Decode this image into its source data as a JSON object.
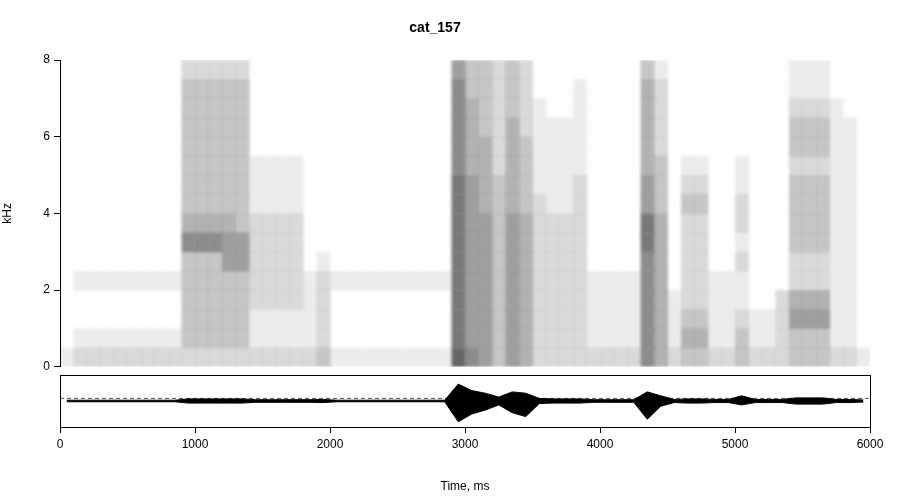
{
  "chart_data": [
    {
      "type": "heatmap",
      "title": "cat_157",
      "y_label": "kHz",
      "xlim": [
        0,
        6000
      ],
      "ylim": [
        0,
        8
      ],
      "yticks": [
        0,
        2,
        4,
        6,
        8
      ],
      "tick_labels": "y",
      "color": "#000000",
      "zlim": [
        0,
        10
      ],
      "x_bins": [
        0,
        100,
        200,
        300,
        400,
        500,
        600,
        700,
        800,
        900,
        1000,
        1100,
        1200,
        1300,
        1400,
        1500,
        1600,
        1700,
        1800,
        1900,
        2000,
        2100,
        2200,
        2300,
        2400,
        2500,
        2600,
        2700,
        2800,
        2900,
        3000,
        3100,
        3200,
        3300,
        3400,
        3500,
        3600,
        3700,
        3800,
        3900,
        4000,
        4100,
        4200,
        4300,
        4400,
        4500,
        4600,
        4700,
        4800,
        4900,
        5000,
        5100,
        5200,
        5300,
        5400,
        5500,
        5600,
        5700,
        5800,
        5900,
        6000
      ],
      "y_bins": [
        0,
        0.5,
        1,
        1.5,
        2,
        2.5,
        3,
        3.5,
        4,
        4.5,
        5,
        5.5,
        6,
        6.5,
        7,
        7.5,
        8
      ],
      "cells": [
        [
          1,
          2,
          2,
          2,
          2,
          2,
          2,
          2,
          2,
          2,
          2,
          2,
          2,
          2,
          2,
          2,
          2,
          2,
          2,
          3,
          1,
          1,
          1,
          1,
          1,
          1,
          1,
          1,
          1,
          8,
          6,
          5,
          3,
          5,
          4,
          2,
          2,
          2,
          2,
          2,
          2,
          2,
          2,
          6,
          4,
          2,
          3,
          3,
          2,
          2,
          3,
          2,
          2,
          2,
          3,
          3,
          3,
          2,
          2,
          1
        ],
        [
          0,
          1,
          1,
          1,
          1,
          1,
          1,
          1,
          1,
          3,
          3,
          3,
          3,
          3,
          1,
          1,
          1,
          1,
          1,
          2,
          0,
          0,
          0,
          0,
          0,
          0,
          0,
          0,
          0,
          7,
          5,
          5,
          3,
          5,
          4,
          2,
          2,
          2,
          2,
          1,
          1,
          1,
          1,
          6,
          4,
          1,
          4,
          4,
          1,
          1,
          3,
          1,
          1,
          2,
          3,
          3,
          3,
          1,
          1,
          0
        ],
        [
          0,
          0,
          0,
          0,
          0,
          0,
          0,
          0,
          0,
          3,
          3,
          3,
          3,
          3,
          1,
          1,
          1,
          1,
          1,
          2,
          0,
          0,
          0,
          0,
          0,
          0,
          0,
          0,
          0,
          7,
          5,
          5,
          3,
          5,
          4,
          2,
          2,
          2,
          2,
          1,
          1,
          1,
          1,
          6,
          4,
          1,
          3,
          3,
          1,
          1,
          2,
          1,
          1,
          2,
          5,
          5,
          5,
          1,
          1,
          0
        ],
        [
          0,
          0,
          0,
          0,
          0,
          0,
          0,
          0,
          0,
          3,
          3,
          3,
          3,
          3,
          2,
          2,
          2,
          2,
          1,
          2,
          0,
          0,
          0,
          0,
          0,
          0,
          0,
          0,
          0,
          7,
          5,
          5,
          3,
          5,
          4,
          2,
          2,
          2,
          2,
          1,
          1,
          1,
          1,
          6,
          4,
          1,
          2,
          2,
          1,
          1,
          1,
          0,
          0,
          2,
          4,
          4,
          4,
          1,
          1,
          0
        ],
        [
          0,
          1,
          1,
          1,
          1,
          1,
          1,
          1,
          1,
          3,
          3,
          3,
          3,
          3,
          2,
          2,
          2,
          2,
          1,
          2,
          1,
          1,
          1,
          1,
          1,
          1,
          1,
          1,
          1,
          7,
          5,
          5,
          3,
          5,
          4,
          2,
          2,
          2,
          2,
          1,
          1,
          1,
          1,
          6,
          4,
          0,
          2,
          2,
          1,
          1,
          1,
          0,
          0,
          0,
          2,
          2,
          2,
          1,
          1,
          0
        ],
        [
          0,
          0,
          0,
          0,
          0,
          0,
          0,
          0,
          0,
          3,
          3,
          3,
          5,
          5,
          2,
          2,
          2,
          2,
          0,
          1,
          0,
          0,
          0,
          0,
          0,
          0,
          0,
          0,
          0,
          7,
          5,
          5,
          3,
          5,
          4,
          2,
          2,
          2,
          2,
          0,
          0,
          0,
          0,
          6,
          4,
          0,
          2,
          2,
          0,
          0,
          2,
          0,
          0,
          0,
          2,
          2,
          2,
          1,
          1,
          0
        ],
        [
          0,
          0,
          0,
          0,
          0,
          0,
          0,
          0,
          0,
          6,
          6,
          6,
          5,
          5,
          2,
          2,
          2,
          2,
          0,
          0,
          0,
          0,
          0,
          0,
          0,
          0,
          0,
          0,
          0,
          7,
          5,
          5,
          3,
          5,
          4,
          2,
          2,
          2,
          2,
          0,
          0,
          0,
          0,
          7,
          4,
          0,
          2,
          2,
          0,
          0,
          1,
          0,
          0,
          0,
          3,
          3,
          3,
          1,
          1,
          0
        ],
        [
          0,
          0,
          0,
          0,
          0,
          0,
          0,
          0,
          0,
          4,
          4,
          4,
          4,
          3,
          2,
          2,
          2,
          2,
          0,
          0,
          0,
          0,
          0,
          0,
          0,
          0,
          0,
          0,
          0,
          7,
          5,
          5,
          3,
          5,
          4,
          2,
          2,
          2,
          2,
          0,
          0,
          0,
          0,
          7,
          4,
          0,
          2,
          2,
          0,
          0,
          2,
          0,
          0,
          0,
          3,
          3,
          3,
          1,
          1,
          0
        ],
        [
          0,
          0,
          0,
          0,
          0,
          0,
          0,
          0,
          0,
          3,
          3,
          3,
          3,
          3,
          1,
          1,
          1,
          1,
          0,
          0,
          0,
          0,
          0,
          0,
          0,
          0,
          0,
          0,
          0,
          7,
          5,
          4,
          3,
          4,
          3,
          2,
          1,
          1,
          2,
          0,
          0,
          0,
          0,
          5,
          3,
          0,
          3,
          3,
          0,
          0,
          2,
          0,
          0,
          0,
          3,
          3,
          3,
          1,
          1,
          0
        ],
        [
          0,
          0,
          0,
          0,
          0,
          0,
          0,
          0,
          0,
          3,
          3,
          3,
          3,
          3,
          1,
          1,
          1,
          1,
          0,
          0,
          0,
          0,
          0,
          0,
          0,
          0,
          0,
          0,
          0,
          7,
          5,
          4,
          3,
          4,
          3,
          1,
          1,
          1,
          2,
          0,
          0,
          0,
          0,
          5,
          3,
          0,
          2,
          2,
          0,
          0,
          1,
          0,
          0,
          0,
          3,
          3,
          3,
          1,
          1,
          0
        ],
        [
          0,
          0,
          0,
          0,
          0,
          0,
          0,
          0,
          0,
          3,
          3,
          3,
          3,
          3,
          1,
          1,
          1,
          1,
          0,
          0,
          0,
          0,
          0,
          0,
          0,
          0,
          0,
          0,
          0,
          6,
          4,
          4,
          2,
          4,
          3,
          1,
          1,
          1,
          1,
          0,
          0,
          0,
          0,
          4,
          3,
          0,
          1,
          1,
          0,
          0,
          1,
          0,
          0,
          0,
          2,
          2,
          2,
          1,
          1,
          0
        ],
        [
          0,
          0,
          0,
          0,
          0,
          0,
          0,
          0,
          0,
          3,
          3,
          3,
          3,
          3,
          0,
          0,
          0,
          0,
          0,
          0,
          0,
          0,
          0,
          0,
          0,
          0,
          0,
          0,
          0,
          6,
          4,
          4,
          2,
          4,
          3,
          1,
          1,
          1,
          1,
          0,
          0,
          0,
          0,
          4,
          2,
          0,
          0,
          0,
          0,
          0,
          0,
          0,
          0,
          0,
          3,
          3,
          3,
          1,
          1,
          0
        ],
        [
          0,
          0,
          0,
          0,
          0,
          0,
          0,
          0,
          0,
          3,
          3,
          3,
          3,
          3,
          0,
          0,
          0,
          0,
          0,
          0,
          0,
          0,
          0,
          0,
          0,
          0,
          0,
          0,
          0,
          6,
          4,
          3,
          2,
          4,
          2,
          1,
          1,
          1,
          1,
          0,
          0,
          0,
          0,
          4,
          2,
          0,
          0,
          0,
          0,
          0,
          0,
          0,
          0,
          0,
          3,
          3,
          3,
          1,
          1,
          0
        ],
        [
          0,
          0,
          0,
          0,
          0,
          0,
          0,
          0,
          0,
          3,
          3,
          3,
          3,
          3,
          0,
          0,
          0,
          0,
          0,
          0,
          0,
          0,
          0,
          0,
          0,
          0,
          0,
          0,
          0,
          6,
          4,
          3,
          2,
          3,
          2,
          1,
          0,
          0,
          1,
          0,
          0,
          0,
          0,
          4,
          2,
          0,
          0,
          0,
          0,
          0,
          0,
          0,
          0,
          0,
          2,
          2,
          2,
          1,
          0,
          0
        ],
        [
          0,
          0,
          0,
          0,
          0,
          0,
          0,
          0,
          0,
          3,
          3,
          3,
          3,
          3,
          0,
          0,
          0,
          0,
          0,
          0,
          0,
          0,
          0,
          0,
          0,
          0,
          0,
          0,
          0,
          6,
          3,
          3,
          2,
          3,
          2,
          0,
          0,
          0,
          1,
          0,
          0,
          0,
          0,
          4,
          2,
          0,
          0,
          0,
          0,
          0,
          0,
          0,
          0,
          0,
          1,
          1,
          1,
          0,
          0,
          0
        ],
        [
          0,
          0,
          0,
          0,
          0,
          0,
          0,
          0,
          0,
          2,
          2,
          2,
          2,
          2,
          0,
          0,
          0,
          0,
          0,
          0,
          0,
          0,
          0,
          0,
          0,
          0,
          0,
          0,
          0,
          5,
          3,
          3,
          2,
          3,
          2,
          0,
          0,
          0,
          0,
          0,
          0,
          0,
          0,
          3,
          1,
          0,
          0,
          0,
          0,
          0,
          0,
          0,
          0,
          0,
          1,
          1,
          1,
          0,
          0,
          0
        ]
      ]
    },
    {
      "type": "line",
      "x_label": "Time, ms",
      "xlim": [
        0,
        6000
      ],
      "xticks": [
        0,
        1000,
        2000,
        3000,
        4000,
        5000,
        6000
      ],
      "ylim": [
        -1,
        1
      ],
      "tick_labels": "x",
      "color": "#000000",
      "reference": 0.1,
      "x": [
        50,
        150,
        250,
        350,
        450,
        550,
        650,
        750,
        850,
        950,
        1050,
        1150,
        1250,
        1350,
        1450,
        1550,
        1650,
        1750,
        1850,
        1950,
        2050,
        2150,
        2250,
        2350,
        2450,
        2550,
        2650,
        2750,
        2850,
        2950,
        3050,
        3150,
        3250,
        3350,
        3450,
        3550,
        3650,
        3750,
        3850,
        3950,
        4050,
        4150,
        4250,
        4350,
        4450,
        4550,
        4650,
        4750,
        4850,
        4950,
        5050,
        5150,
        5250,
        5350,
        5450,
        5550,
        5650,
        5750,
        5850,
        5950
      ],
      "envelope": {
        "max": [
          0.03,
          0.03,
          0.03,
          0.03,
          0.03,
          0.03,
          0.03,
          0.03,
          0.03,
          0.08,
          0.08,
          0.08,
          0.08,
          0.08,
          0.05,
          0.05,
          0.05,
          0.05,
          0.05,
          0.06,
          0.03,
          0.03,
          0.03,
          0.03,
          0.03,
          0.03,
          0.03,
          0.03,
          0.03,
          0.65,
          0.4,
          0.3,
          0.15,
          0.35,
          0.3,
          0.1,
          0.08,
          0.08,
          0.08,
          0.05,
          0.05,
          0.05,
          0.05,
          0.35,
          0.2,
          0.06,
          0.08,
          0.08,
          0.06,
          0.06,
          0.2,
          0.06,
          0.06,
          0.06,
          0.12,
          0.12,
          0.12,
          0.06,
          0.06,
          0.04
        ],
        "min": [
          -0.03,
          -0.03,
          -0.03,
          -0.03,
          -0.03,
          -0.03,
          -0.03,
          -0.03,
          -0.03,
          -0.08,
          -0.08,
          -0.08,
          -0.08,
          -0.08,
          -0.05,
          -0.05,
          -0.05,
          -0.05,
          -0.05,
          -0.06,
          -0.03,
          -0.03,
          -0.03,
          -0.03,
          -0.03,
          -0.03,
          -0.03,
          -0.03,
          -0.03,
          -0.8,
          -0.5,
          -0.35,
          -0.15,
          -0.45,
          -0.6,
          -0.1,
          -0.08,
          -0.08,
          -0.08,
          -0.05,
          -0.05,
          -0.05,
          -0.05,
          -0.7,
          -0.2,
          -0.06,
          -0.08,
          -0.08,
          -0.06,
          -0.06,
          -0.15,
          -0.06,
          -0.06,
          -0.06,
          -0.12,
          -0.12,
          -0.12,
          -0.06,
          -0.06,
          -0.04
        ]
      }
    }
  ]
}
